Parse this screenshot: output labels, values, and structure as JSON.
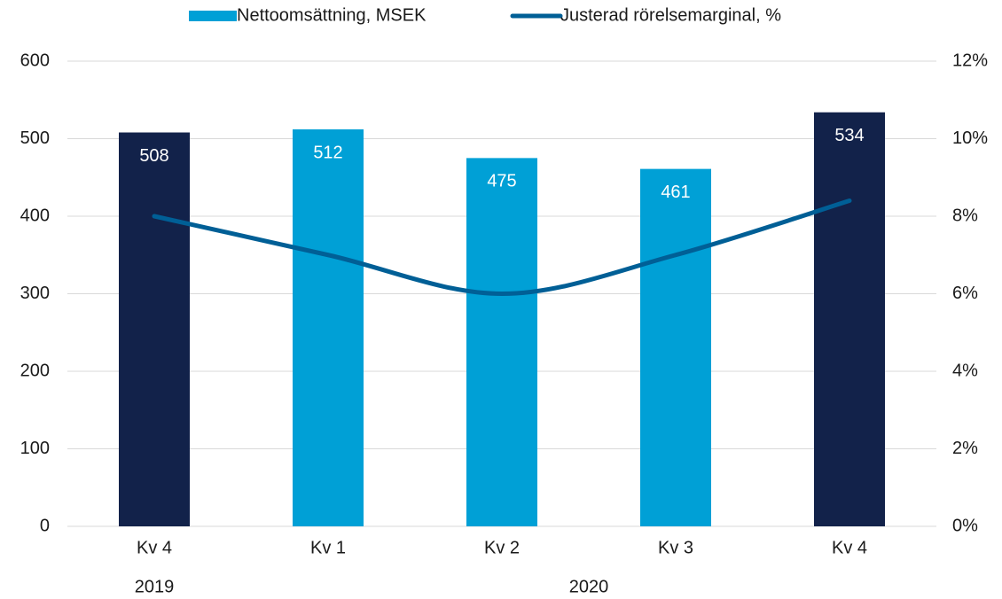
{
  "chart_data": {
    "type": "bar",
    "categories": [
      "Kv 4",
      "Kv 1",
      "Kv 2",
      "Kv 3",
      "Kv 4"
    ],
    "year_labels": [
      "2019",
      "2020"
    ],
    "series": [
      {
        "name": "Nettoomsättning, MSEK",
        "color": "#00a0d6",
        "colors": [
          "#12224a",
          "#00a0d6",
          "#00a0d6",
          "#00a0d6",
          "#12224a"
        ],
        "values": [
          508,
          512,
          475,
          461,
          534
        ]
      },
      {
        "name": "Justerad rörelsemarginal, %",
        "type": "line",
        "axis": "y2",
        "color": "#005f96",
        "values": [
          8.0,
          7.0,
          6.0,
          7.0,
          8.4
        ]
      }
    ],
    "ylim": [
      0,
      600
    ],
    "yticks": [
      0,
      100,
      200,
      300,
      400,
      500,
      600
    ],
    "y2lim": [
      0,
      12
    ],
    "y2ticks": [
      {
        "value": 0,
        "label": "0%"
      },
      {
        "value": 2,
        "label": "2%"
      },
      {
        "value": 4,
        "label": "4%"
      },
      {
        "value": 6,
        "label": "6%"
      },
      {
        "value": 8,
        "label": "8%"
      },
      {
        "value": 10,
        "label": "10%"
      },
      {
        "value": 12,
        "label": "12%"
      }
    ],
    "grid": true,
    "legend": "top"
  }
}
